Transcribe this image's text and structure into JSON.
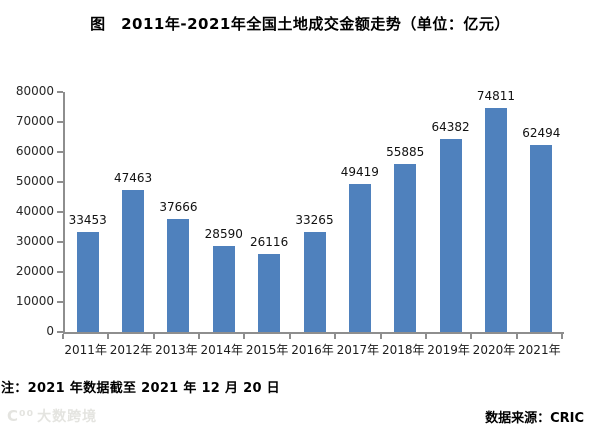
{
  "title": "图　2011年-2021年全国土地成交金额走势（单位：亿元）",
  "chart_data": {
    "type": "bar",
    "categories": [
      "2011年",
      "2012年",
      "2013年",
      "2014年",
      "2015年",
      "2016年",
      "2017年",
      "2018年",
      "2019年",
      "2020年",
      "2021年"
    ],
    "values": [
      33453,
      47463,
      37666,
      28590,
      26116,
      33265,
      49419,
      55885,
      64382,
      74811,
      62494
    ],
    "title": "图　2011年-2021年全国土地成交金额走势（单位：亿元）",
    "xlabel": "",
    "ylabel": "",
    "ylim": [
      0,
      80000
    ],
    "ytick_step": 10000,
    "grid": false,
    "legend": false,
    "data_labels": true,
    "bar_color": "#4F81BD"
  },
  "note": "注：2021 年数据截至 2021 年 12 月 20 日",
  "source": "数据来源：CRIC",
  "watermark": {
    "logo": "C⁰⁰",
    "text": "大数跨境"
  },
  "colors": {
    "bar": "#4F81BD",
    "axis": "#8e8e8e",
    "label_text": "#111111",
    "watermark": "#e4e4e0"
  }
}
